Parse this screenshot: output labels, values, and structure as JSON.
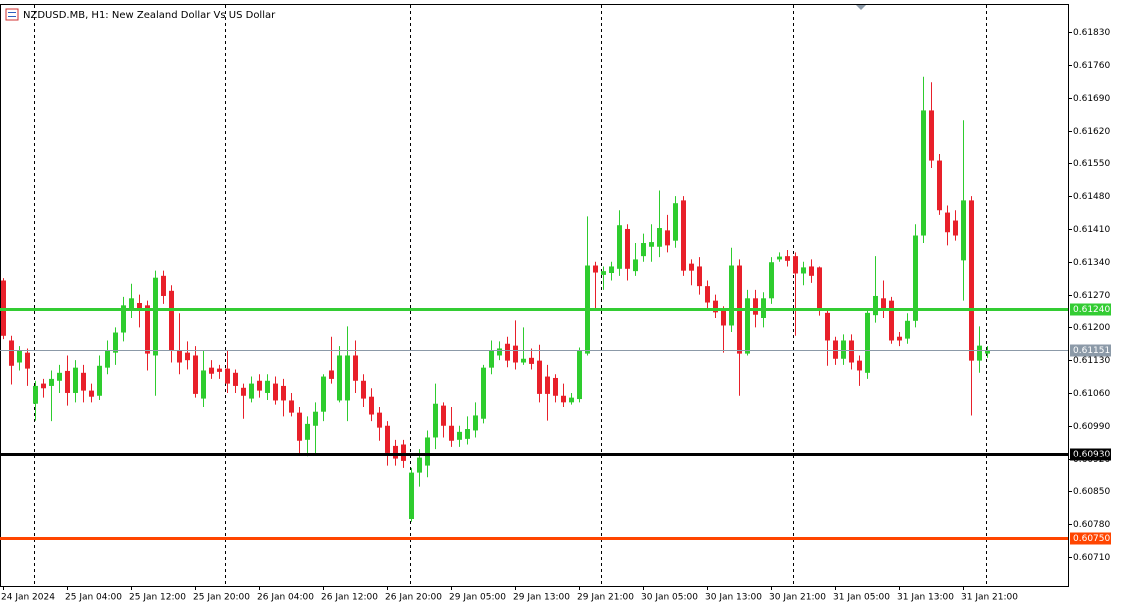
{
  "chart_data": {
    "type": "candlestick",
    "title": "NZDUSD.MB, H1:  New Zealand Dollar Vs US Dollar",
    "up_color": "#2ecc2e",
    "down_color": "#e8202a",
    "categories": [
      "24 Jan 2024",
      null,
      null,
      null,
      null,
      null,
      null,
      null,
      "25 Jan 04:00",
      null,
      null,
      null,
      null,
      null,
      null,
      null,
      "25 Jan 12:00",
      null,
      null,
      null,
      null,
      null,
      null,
      null,
      "25 Jan 20:00",
      null,
      null,
      null,
      null,
      null,
      null,
      null,
      "26 Jan 04:00",
      null,
      null,
      null,
      null,
      null,
      null,
      null,
      "26 Jan 12:00",
      null,
      null,
      null,
      null,
      null,
      null,
      null,
      "26 Jan 20:00",
      null,
      null,
      null,
      null,
      null,
      null,
      null,
      "29 Jan 05:00",
      null,
      null,
      null,
      null,
      null,
      null,
      null,
      "29 Jan 13:00",
      null,
      null,
      null,
      null,
      null,
      null,
      null,
      "29 Jan 21:00",
      null,
      null,
      null,
      null,
      null,
      null,
      null,
      "30 Jan 05:00",
      null,
      null,
      null,
      null,
      null,
      null,
      null,
      "30 Jan 13:00",
      null,
      null,
      null,
      null,
      null,
      null,
      null,
      "30 Jan 21:00",
      null,
      null,
      null,
      null,
      null,
      null,
      null,
      "31 Jan 05:00",
      null,
      null,
      null,
      null,
      null,
      null,
      null,
      "31 Jan 13:00",
      null,
      null,
      null,
      null,
      null,
      null,
      null,
      "31 Jan 21:00",
      null,
      null,
      null
    ],
    "open": [
      0.613,
      0.61172,
      0.61125,
      0.61146,
      0.61037,
      0.6108,
      0.61075,
      0.61086,
      0.61107,
      0.6106,
      0.61103,
      0.61065,
      0.61054,
      0.61114,
      0.61146,
      0.61189,
      0.61236,
      0.61252,
      0.61247,
      0.6114,
      0.6131,
      0.61278,
      0.6115,
      0.61146,
      0.6114,
      0.61048,
      0.61114,
      0.61112,
      0.61112,
      0.61103,
      0.61071,
      0.61048,
      0.61086,
      0.6106,
      0.6108,
      0.61075,
      0.61044,
      0.61018,
      0.6096,
      0.6099,
      0.6102,
      0.61108,
      0.61044,
      0.61044,
      0.6114,
      0.61086,
      0.61052,
      0.61018,
      0.6099,
      0.60947,
      0.6095,
      0.60791,
      0.6089,
      0.60905,
      0.60965,
      0.61033,
      0.6099,
      0.6096,
      0.60962,
      0.6098,
      0.61005,
      0.61114,
      0.6114,
      0.61165,
      0.61161,
      0.61125,
      0.61135,
      0.61129,
      0.61095,
      0.61092,
      0.61054,
      0.6104,
      0.61047,
      0.61144,
      0.61332,
      0.61312,
      0.61316,
      0.61325,
      0.6141,
      0.6132,
      0.61352,
      0.61372,
      0.61372,
      0.61407,
      0.61385,
      0.61471,
      0.61336,
      0.6133,
      0.61288,
      0.61257,
      0.61236,
      0.61204,
      0.61332,
      0.61144,
      0.61262,
      0.6122,
      0.61262,
      0.61345,
      0.61352,
      0.61352,
      0.61315,
      0.6133,
      0.61328,
      0.61231,
      0.61172,
      0.61133,
      0.61172,
      0.61129,
      0.61103,
      0.61226,
      0.61262,
      0.61257,
      0.6118,
      0.61176,
      0.61214,
      0.61396,
      0.61663,
      0.61556,
      0.61445,
      0.61428,
      0.61343,
      0.61471,
      0.61129,
      0.61144
    ],
    "high": [
      0.61305,
      0.61182,
      0.6116,
      0.61155,
      0.61086,
      0.6109,
      0.61108,
      0.6112,
      0.6114,
      0.6113,
      0.6112,
      0.6108,
      0.6114,
      0.61172,
      0.612,
      0.61265,
      0.61293,
      0.6127,
      0.61257,
      0.61321,
      0.61321,
      0.6129,
      0.6123,
      0.6117,
      0.6116,
      0.6115,
      0.6113,
      0.6112,
      0.6115,
      0.6111,
      0.6108,
      0.61095,
      0.611,
      0.611,
      0.61095,
      0.6109,
      0.6106,
      0.6103,
      0.6101,
      0.6104,
      0.611,
      0.6118,
      0.6116,
      0.61202,
      0.61172,
      0.611,
      0.6107,
      0.6103,
      0.61,
      0.6096,
      0.6096,
      0.609,
      0.6094,
      0.6098,
      0.6108,
      0.6104,
      0.6103,
      0.6099,
      0.6101,
      0.6104,
      0.6112,
      0.61172,
      0.6117,
      0.6118,
      0.61215,
      0.612,
      0.61155,
      0.61163,
      0.6112,
      0.611,
      0.6108,
      0.6106,
      0.61157,
      0.61437,
      0.6134,
      0.6133,
      0.6134,
      0.6145,
      0.6142,
      0.6138,
      0.614,
      0.6142,
      0.61492,
      0.6144,
      0.6148,
      0.6148,
      0.61345,
      0.6135,
      0.613,
      0.6127,
      0.61245,
      0.6137,
      0.61345,
      0.6128,
      0.6128,
      0.61275,
      0.6135,
      0.6136,
      0.61365,
      0.6136,
      0.6134,
      0.61345,
      0.6133,
      0.6124,
      0.6118,
      0.61185,
      0.61185,
      0.6114,
      0.6124,
      0.61352,
      0.613,
      0.61265,
      0.6119,
      0.6123,
      0.6142,
      0.61735,
      0.61723,
      0.6157,
      0.6146,
      0.6145,
      0.61642,
      0.6148,
      0.61202,
      0.6116
    ],
    "low": [
      0.61175,
      0.61078,
      0.61108,
      0.61075,
      0.61001,
      0.6105,
      0.61,
      0.6106,
      0.61033,
      0.6104,
      0.6104,
      0.6104,
      0.61045,
      0.611,
      0.6112,
      0.6117,
      0.6122,
      0.612,
      0.61108,
      0.61054,
      0.6125,
      0.61125,
      0.611,
      0.6111,
      0.6105,
      0.6103,
      0.6109,
      0.6109,
      0.6106,
      0.6106,
      0.61005,
      0.6104,
      0.6105,
      0.61045,
      0.61035,
      0.6101,
      0.6101,
      0.60926,
      0.60925,
      0.6093,
      0.61,
      0.6108,
      0.6104,
      0.61,
      0.6106,
      0.6103,
      0.61,
      0.60958,
      0.60905,
      0.60905,
      0.609,
      0.60785,
      0.6086,
      0.6088,
      0.6094,
      0.60965,
      0.60945,
      0.60945,
      0.6095,
      0.60965,
      0.60995,
      0.611,
      0.6113,
      0.61115,
      0.6111,
      0.6112,
      0.6111,
      0.6104,
      0.61001,
      0.6104,
      0.6103,
      0.61035,
      0.6104,
      0.6114,
      0.6124,
      0.6128,
      0.613,
      0.6131,
      0.613,
      0.6131,
      0.6134,
      0.6134,
      0.6135,
      0.6136,
      0.6137,
      0.6131,
      0.6129,
      0.6127,
      0.6124,
      0.6122,
      0.61146,
      0.6119,
      0.61054,
      0.6114,
      0.612,
      0.612,
      0.6125,
      0.6134,
      0.6133,
      0.61182,
      0.6129,
      0.61295,
      0.61225,
      0.61118,
      0.6112,
      0.6112,
      0.6111,
      0.61075,
      0.6109,
      0.6121,
      0.6122,
      0.61165,
      0.6116,
      0.61165,
      0.612,
      0.6138,
      0.6154,
      0.6144,
      0.61375,
      0.61385,
      0.61257,
      0.61012,
      0.61103,
      0.61135
    ],
    "close": [
      0.61182,
      0.61118,
      0.6115,
      0.61112,
      0.61075,
      0.6107,
      0.6109,
      0.61103,
      0.6106,
      0.61114,
      0.61065,
      0.61052,
      0.61118,
      0.6115,
      0.61189,
      0.61247,
      0.61262,
      0.6124,
      0.61144,
      0.61306,
      0.61267,
      0.6115,
      0.61125,
      0.6113,
      0.61058,
      0.61108,
      0.61101,
      0.61105,
      0.6108,
      0.61075,
      0.61054,
      0.6108,
      0.61065,
      0.61086,
      0.61044,
      0.61044,
      0.61018,
      0.60958,
      0.60994,
      0.6102,
      0.61095,
      0.6109,
      0.6114,
      0.6114,
      0.61086,
      0.61048,
      0.61014,
      0.60986,
      0.60932,
      0.6092,
      0.60915,
      0.6089,
      0.60922,
      0.60965,
      0.61037,
      0.6099,
      0.60958,
      0.60977,
      0.60983,
      0.61012,
      0.61114,
      0.6115,
      0.61155,
      0.61129,
      0.61125,
      0.61133,
      0.61122,
      0.61058,
      0.61058,
      0.61054,
      0.6104,
      0.6105,
      0.6115,
      0.61332,
      0.61317,
      0.6132,
      0.6133,
      0.61418,
      0.61325,
      0.61345,
      0.6138,
      0.61382,
      0.61412,
      0.61375,
      0.61465,
      0.61321,
      0.61321,
      0.61288,
      0.61253,
      0.61232,
      0.61204,
      0.61332,
      0.61144,
      0.61262,
      0.61227,
      0.61262,
      0.61339,
      0.61351,
      0.61342,
      0.61315,
      0.61328,
      0.6131,
      0.61236,
      0.61172,
      0.61133,
      0.61172,
      0.61125,
      0.61108,
      0.61231,
      0.61267,
      0.61236,
      0.61172,
      0.61172,
      0.61214,
      0.61396,
      0.61663,
      0.61556,
      0.6145,
      0.61403,
      0.61396,
      0.61471,
      0.61129,
      0.61161,
      0.61151
    ],
    "ylim": [
      0.60648,
      0.61888
    ],
    "yticks": [
      {
        "value": 0.6071,
        "label": "0.60710"
      },
      {
        "value": 0.6078,
        "label": "0.60780"
      },
      {
        "value": 0.6085,
        "label": "0.60850"
      },
      {
        "value": 0.6092,
        "label": "0.60920"
      },
      {
        "value": 0.6099,
        "label": "0.60990"
      },
      {
        "value": 0.6106,
        "label": "0.61060"
      },
      {
        "value": 0.6113,
        "label": "0.61130"
      },
      {
        "value": 0.612,
        "label": "0.61200"
      },
      {
        "value": 0.6127,
        "label": "0.61270"
      },
      {
        "value": 0.6134,
        "label": "0.61340"
      },
      {
        "value": 0.6141,
        "label": "0.61410"
      },
      {
        "value": 0.6148,
        "label": "0.61480"
      },
      {
        "value": 0.6155,
        "label": "0.61550"
      },
      {
        "value": 0.6162,
        "label": "0.61620"
      },
      {
        "value": 0.6169,
        "label": "0.61690"
      },
      {
        "value": 0.6176,
        "label": "0.61760"
      },
      {
        "value": 0.6183,
        "label": "0.61830"
      }
    ],
    "levels": [
      {
        "value": 0.6124,
        "label": "0.61240",
        "color": "#33cc33",
        "width": 3
      },
      {
        "value": 0.6093,
        "label": "0.60930",
        "color": "#000000",
        "width": 3
      },
      {
        "value": 0.6075,
        "label": "0.60750",
        "color": "#ff4500",
        "width": 3
      },
      {
        "value": 0.61151,
        "label": "0.61151",
        "color": "#8c9aa8",
        "width": 1
      }
    ]
  }
}
